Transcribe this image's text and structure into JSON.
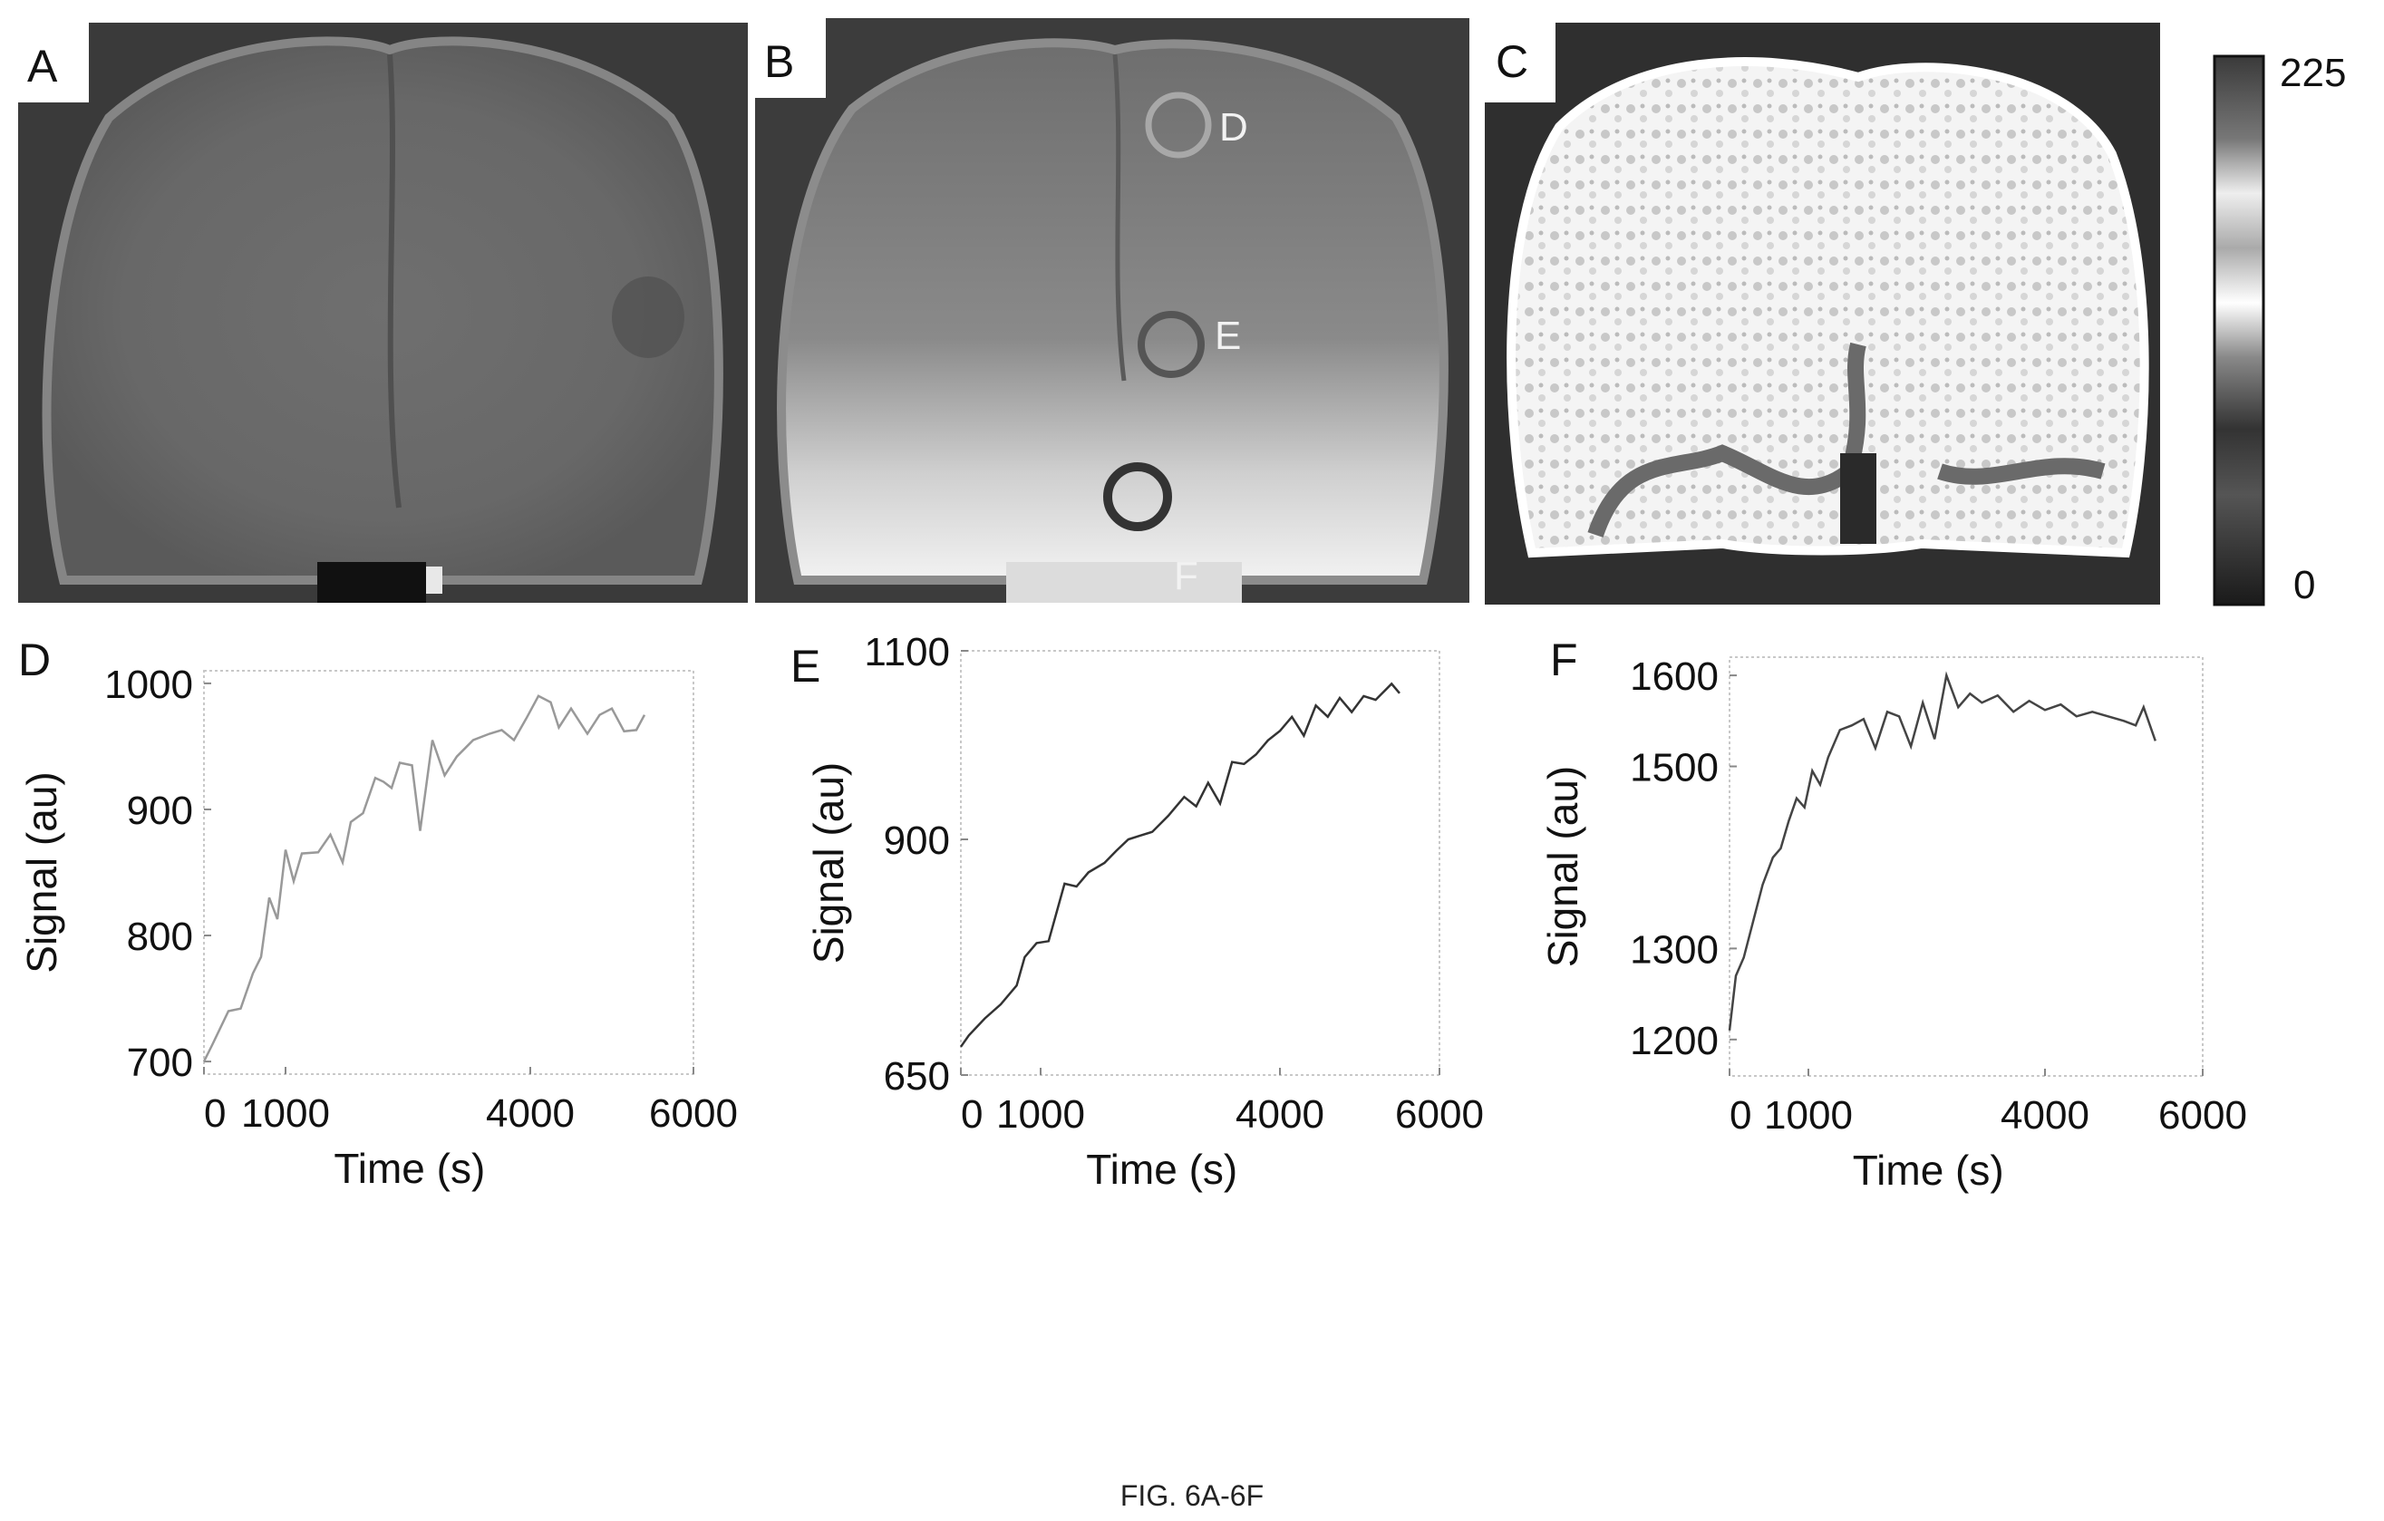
{
  "panels": {
    "A": {
      "letter": "A"
    },
    "B": {
      "letter": "B",
      "roi_labels": [
        "D",
        "E",
        "F"
      ]
    },
    "C": {
      "letter": "C"
    }
  },
  "colorbar": {
    "max_label": "225",
    "min_label": "0"
  },
  "chart_data": [
    {
      "type": "line",
      "panel": "D",
      "xlabel": "Time (s)",
      "ylabel": "Signal (au)",
      "xlim": [
        0,
        6000
      ],
      "ylim": [
        690,
        1010
      ],
      "xticks": [
        0,
        1000,
        4000,
        6000
      ],
      "yticks": [
        700,
        800,
        900,
        1000
      ],
      "series": [
        {
          "color": "#999999",
          "x": [
            0,
            100,
            300,
            450,
            600,
            700,
            800,
            900,
            1000,
            1100,
            1200,
            1400,
            1550,
            1700,
            1800,
            1950,
            2100,
            2200,
            2300,
            2400,
            2550,
            2650,
            2800,
            2950,
            3100,
            3300,
            3500,
            3650,
            3800,
            3950,
            4100,
            4250,
            4350,
            4500,
            4700,
            4850,
            5000,
            5150,
            5300,
            5400
          ],
          "y": [
            700,
            713,
            740,
            742,
            770,
            783,
            830,
            813,
            868,
            843,
            865,
            866,
            880,
            858,
            890,
            897,
            925,
            922,
            917,
            937,
            935,
            883,
            955,
            927,
            942,
            955,
            960,
            963,
            955,
            972,
            990,
            985,
            965,
            980,
            960,
            975,
            980,
            962,
            963,
            975
          ]
        }
      ]
    },
    {
      "type": "line",
      "panel": "E",
      "xlabel": "Time (s)",
      "ylabel": "Signal (au)",
      "xlim": [
        0,
        6000
      ],
      "ylim": [
        650,
        1100
      ],
      "xticks": [
        0,
        1000,
        4000,
        6000
      ],
      "yticks": [
        650,
        900,
        1100
      ],
      "series": [
        {
          "color": "#333333",
          "x": [
            0,
            100,
            300,
            500,
            700,
            800,
            950,
            1100,
            1300,
            1450,
            1600,
            1800,
            1950,
            2100,
            2250,
            2400,
            2600,
            2800,
            2950,
            3100,
            3250,
            3400,
            3550,
            3700,
            3850,
            4000,
            4150,
            4300,
            4450,
            4600,
            4750,
            4900,
            5050,
            5200,
            5400,
            5500
          ],
          "y": [
            680,
            692,
            710,
            725,
            745,
            775,
            790,
            792,
            853,
            850,
            865,
            875,
            888,
            900,
            904,
            908,
            925,
            945,
            935,
            960,
            938,
            982,
            980,
            990,
            1005,
            1015,
            1030,
            1010,
            1042,
            1030,
            1050,
            1035,
            1052,
            1048,
            1065,
            1055
          ]
        }
      ]
    },
    {
      "type": "line",
      "panel": "F",
      "xlabel": "Time (s)",
      "ylabel": "Signal (au)",
      "xlim": [
        0,
        6000
      ],
      "ylim": [
        1160,
        1620
      ],
      "xticks": [
        0,
        1000,
        4000,
        6000
      ],
      "yticks": [
        1200,
        1300,
        1500,
        1600
      ],
      "series": [
        {
          "color": "#444444",
          "x": [
            0,
            80,
            180,
            300,
            420,
            550,
            650,
            750,
            850,
            950,
            1050,
            1150,
            1250,
            1400,
            1550,
            1700,
            1850,
            2000,
            2150,
            2300,
            2450,
            2600,
            2750,
            2900,
            3050,
            3200,
            3400,
            3600,
            3800,
            4000,
            4200,
            4400,
            4600,
            4800,
            5000,
            5150,
            5250,
            5400
          ],
          "y": [
            1210,
            1270,
            1290,
            1330,
            1370,
            1400,
            1410,
            1440,
            1465,
            1455,
            1495,
            1480,
            1510,
            1540,
            1545,
            1552,
            1520,
            1560,
            1555,
            1522,
            1570,
            1530,
            1600,
            1565,
            1580,
            1570,
            1578,
            1560,
            1572,
            1562,
            1568,
            1555,
            1560,
            1555,
            1550,
            1545,
            1565,
            1528
          ]
        }
      ]
    }
  ],
  "caption": "FIG. 6A-6F"
}
